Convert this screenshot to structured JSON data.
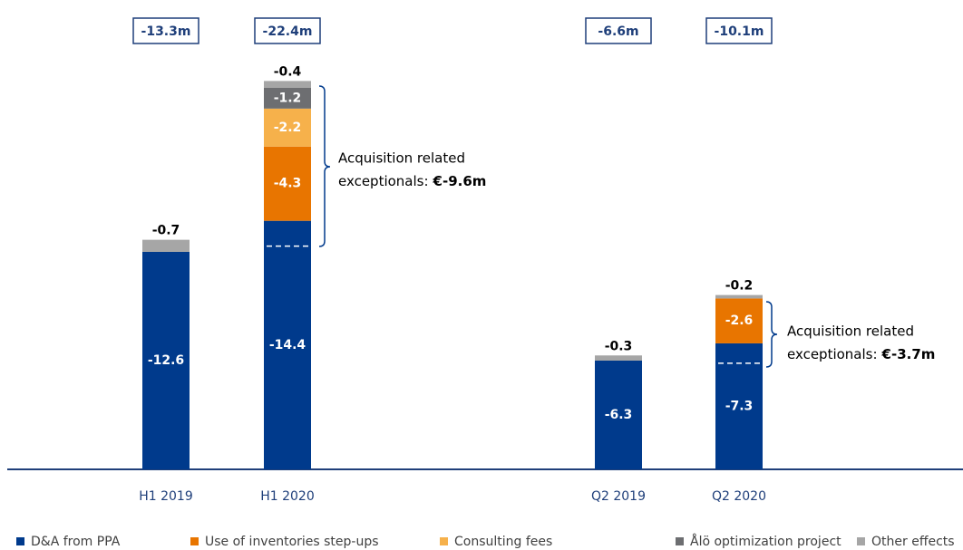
{
  "chart_data": {
    "type": "bar",
    "stacked": true,
    "categories": [
      "H1 2019",
      "H1 2020",
      "Q2 2019",
      "Q2 2020"
    ],
    "total_labels": [
      "-13.3m",
      "-22.4m",
      "-6.6m",
      "-10.1m"
    ],
    "series": [
      {
        "name": "D&A from PPA",
        "color": "#003a8c",
        "values": [
          -12.6,
          -14.4,
          -6.3,
          -7.3
        ]
      },
      {
        "name": "Use of inventories step-ups",
        "color": "#e87500",
        "values": [
          null,
          -4.3,
          null,
          -2.6
        ]
      },
      {
        "name": "Consulting fees",
        "color": "#f6b14b",
        "values": [
          null,
          -2.2,
          null,
          null
        ]
      },
      {
        "name": "Ålö optimization project",
        "color": "#6d6e71",
        "values": [
          null,
          -1.2,
          null,
          null
        ]
      },
      {
        "name": "Other effects",
        "color": "#a6a6a6",
        "values": [
          -0.7,
          -0.4,
          -0.3,
          -0.2
        ]
      }
    ],
    "annotations": [
      {
        "lines": [
          "Acquisition related",
          "exceptionals:"
        ],
        "emphasis": "€-9.6m"
      },
      {
        "lines": [
          "Acquisition related",
          "exceptionals:"
        ],
        "emphasis": "€-3.7m"
      }
    ]
  }
}
